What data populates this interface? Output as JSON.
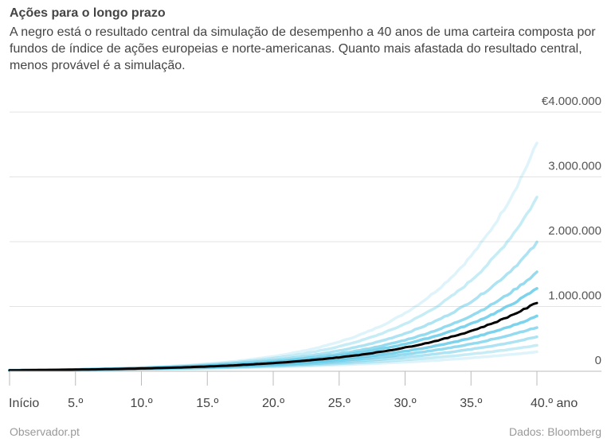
{
  "title": "Ações para o longo prazo",
  "subtitle": "A negro está o resultado central da simulação de desempenho a 40 anos de uma carteira composta por fundos de índice de ações europeias e norte-americanas. Quanto mais afastada do resultado central, menos provável é a simulação.",
  "source_left": "Observador.pt",
  "source_right": "Dados: Bloomberg",
  "chart_data": {
    "type": "line",
    "xlabel": "",
    "ylabel": "",
    "x_ticks": [
      {
        "value": 0,
        "label": "Início"
      },
      {
        "value": 5,
        "label": "5.º"
      },
      {
        "value": 10,
        "label": "10.º"
      },
      {
        "value": 15,
        "label": "15.º"
      },
      {
        "value": 20,
        "label": "20.º"
      },
      {
        "value": 25,
        "label": "25.º"
      },
      {
        "value": 30,
        "label": "30.º"
      },
      {
        "value": 35,
        "label": "35.º"
      },
      {
        "value": 40,
        "label": "40.º ano"
      }
    ],
    "y_ticks": [
      {
        "value": 0,
        "label": "0"
      },
      {
        "value": 1000000,
        "label": "1.000.000"
      },
      {
        "value": 2000000,
        "label": "2.000.000"
      },
      {
        "value": 3000000,
        "label": "3.000.000"
      },
      {
        "value": 4000000,
        "label": "€4.000.000"
      }
    ],
    "xlim": [
      0,
      40
    ],
    "ylim": [
      0,
      4000000
    ],
    "grid": true,
    "start_value": 15000,
    "central_color": "#000000",
    "band_color": "#5bc8e6",
    "series": [
      {
        "final": 3520000,
        "central": false
      },
      {
        "final": 2680000,
        "central": false
      },
      {
        "final": 1980000,
        "central": false
      },
      {
        "final": 1530000,
        "central": false
      },
      {
        "final": 1280000,
        "central": false
      },
      {
        "final": 1060000,
        "central": true
      },
      {
        "final": 850000,
        "central": false
      },
      {
        "final": 680000,
        "central": false
      },
      {
        "final": 530000,
        "central": false
      },
      {
        "final": 400000,
        "central": false
      },
      {
        "final": 300000,
        "central": false
      }
    ]
  }
}
